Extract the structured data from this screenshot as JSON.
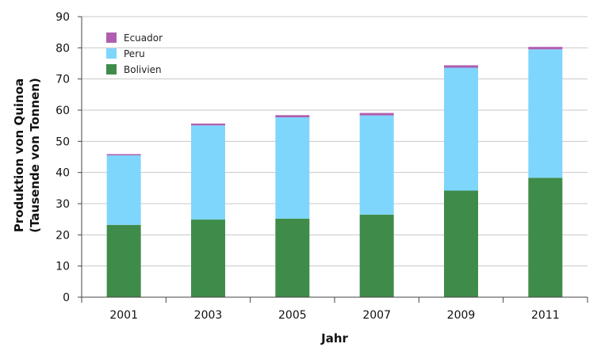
{
  "chart_data": {
    "type": "bar",
    "stacked": true,
    "title": "",
    "xlabel": "Jahr",
    "ylabel_line1": "Produktion von Quinoa",
    "ylabel_line2": "(Tausende von Tonnen)",
    "categories": [
      "2001",
      "2003",
      "2005",
      "2007",
      "2009",
      "2011"
    ],
    "ylim": [
      0,
      90
    ],
    "yticks": [
      "0",
      "10",
      "20",
      "30",
      "40",
      "50",
      "60",
      "70",
      "80",
      "90"
    ],
    "grid": true,
    "legend_position": "top-left",
    "series": [
      {
        "name": "Bolivien",
        "color": "#3f8c4a",
        "values": [
          23.2,
          24.9,
          25.2,
          26.5,
          34.2,
          38.3
        ]
      },
      {
        "name": "Peru",
        "color": "#7fd6fd",
        "values": [
          22.3,
          30.2,
          32.5,
          31.8,
          39.4,
          41.2
        ]
      },
      {
        "name": "Ecuador",
        "color": "#b05fb0",
        "values": [
          0.4,
          0.6,
          0.7,
          0.8,
          0.8,
          0.8
        ]
      }
    ]
  }
}
